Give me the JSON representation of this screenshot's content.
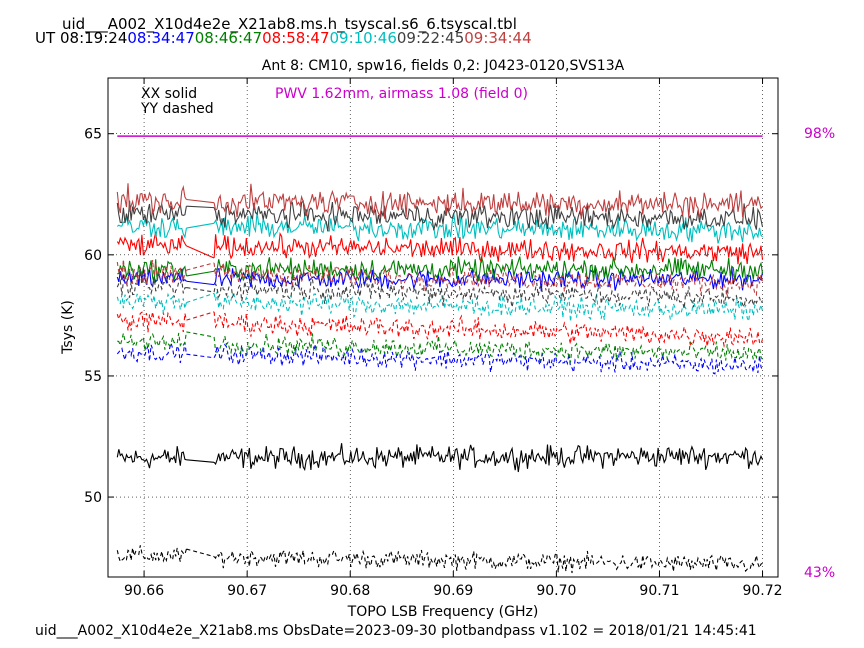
{
  "header": {
    "filename": "uid___A002_X10d4e2e_X21ab8.ms.h_tsyscal.s6_6.tsyscal.tbl",
    "ut_label": "UT",
    "times": [
      {
        "text": "08:19:24",
        "color": "#000000"
      },
      {
        "text": "08:34:47",
        "color": "#0000ff"
      },
      {
        "text": "08:46:47",
        "color": "#008000"
      },
      {
        "text": "08:58:47",
        "color": "#ff0000"
      },
      {
        "text": "09:10:46",
        "color": "#00bfbf"
      },
      {
        "text": "09:22:45",
        "color": "#404040"
      },
      {
        "text": "09:34:44",
        "color": "#bf4040"
      }
    ]
  },
  "chart_data": {
    "type": "line",
    "title": "Ant 8: CM10,  spw16,  fields 0,2: J0423-0120,SVS13A",
    "xlabel": "TOPO LSB Frequency (GHz)",
    "ylabel": "Tsys (K)",
    "xlim": [
      90.6565,
      90.7215
    ],
    "ylim": [
      46.7,
      67.3
    ],
    "xticks": [
      "90.66",
      "90.67",
      "90.68",
      "90.69",
      "90.70",
      "90.71",
      "90.72"
    ],
    "xtick_values": [
      90.66,
      90.67,
      90.68,
      90.69,
      90.7,
      90.71,
      90.72
    ],
    "yticks": [
      "50",
      "55",
      "60",
      "65"
    ],
    "ytick_values": [
      50,
      55,
      60,
      65
    ],
    "grid": true,
    "x_start": 90.6574,
    "x_end": 90.72,
    "gap": [
      90.6642,
      90.6667
    ],
    "legend": [
      {
        "text": "XX solid",
        "color": "#000000"
      },
      {
        "text": "YY dashed",
        "color": "#000000"
      }
    ],
    "annotation": {
      "text": "PWV 1.62mm, airmass 1.08 (field 0)",
      "color": "#cc00cc"
    },
    "right_labels": {
      "top": "98%",
      "bottom": "43%",
      "color": "#cc00cc"
    },
    "atm_transmission": {
      "color": "#cc00cc",
      "value": 64.9
    },
    "series": [
      {
        "name": "08:19:24 XX",
        "color": "#000000",
        "style": "solid",
        "start": 51.6,
        "end": 51.7,
        "noise": 0.22
      },
      {
        "name": "08:19:24 YY",
        "color": "#000000",
        "style": "dashed",
        "start": 47.6,
        "end": 47.2,
        "noise": 0.18
      },
      {
        "name": "08:34:47 XX",
        "color": "#0000ff",
        "style": "solid",
        "start": 59.0,
        "end": 59.0,
        "noise": 0.2
      },
      {
        "name": "08:34:47 YY",
        "color": "#0000ff",
        "style": "dashed",
        "start": 56.0,
        "end": 55.4,
        "noise": 0.2
      },
      {
        "name": "08:46:47 XX",
        "color": "#008000",
        "style": "solid",
        "start": 59.4,
        "end": 59.4,
        "noise": 0.22
      },
      {
        "name": "08:46:47 YY",
        "color": "#008000",
        "style": "dashed",
        "start": 56.4,
        "end": 55.9,
        "noise": 0.2
      },
      {
        "name": "08:58:47 XX",
        "color": "#ff0000",
        "style": "solid",
        "start": 60.4,
        "end": 60.1,
        "noise": 0.22
      },
      {
        "name": "08:58:47 YY",
        "color": "#ff0000",
        "style": "dashed",
        "start": 57.3,
        "end": 56.6,
        "noise": 0.22
      },
      {
        "name": "09:10:46 XX",
        "color": "#00bfbf",
        "style": "solid",
        "start": 61.2,
        "end": 61.0,
        "noise": 0.24
      },
      {
        "name": "09:10:46 YY",
        "color": "#00bfbf",
        "style": "dashed",
        "start": 58.1,
        "end": 57.7,
        "noise": 0.22
      },
      {
        "name": "09:22:45 XX",
        "color": "#404040",
        "style": "solid",
        "start": 61.7,
        "end": 61.5,
        "noise": 0.24
      },
      {
        "name": "09:22:45 YY",
        "color": "#404040",
        "style": "dashed",
        "start": 58.7,
        "end": 58.2,
        "noise": 0.22
      },
      {
        "name": "09:34:44 XX",
        "color": "#bf4040",
        "style": "solid",
        "start": 62.2,
        "end": 62.1,
        "noise": 0.26
      },
      {
        "name": "09:34:44 YY",
        "color": "#bf4040",
        "style": "dashed",
        "start": 59.3,
        "end": 58.8,
        "noise": 0.22
      }
    ]
  },
  "footer": {
    "text": "uid___A002_X10d4e2e_X21ab8.ms  ObsDate=2023-09-30   plotbandpass v1.102 = 2018/01/21 14:45:41"
  }
}
